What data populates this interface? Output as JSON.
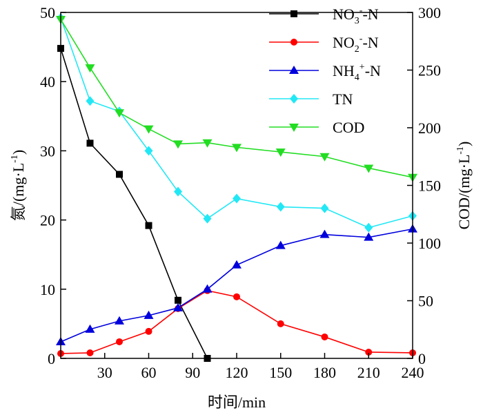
{
  "chart_data": {
    "type": "line",
    "x": [
      0,
      20,
      40,
      60,
      80,
      100,
      120,
      150,
      180,
      210,
      240
    ],
    "xlabel": "时间/min",
    "xlim": [
      0,
      240
    ],
    "xticks": [
      30,
      60,
      90,
      120,
      150,
      180,
      210,
      240
    ],
    "ylabel": "氮/(mg·L⁻¹)",
    "ylabel_parts": {
      "main": "氮/(mg·L",
      "sup": "-1",
      "close": ")"
    },
    "ylim": [
      0,
      50
    ],
    "yticks": [
      0,
      10,
      20,
      30,
      40,
      50
    ],
    "y2label": "COD/(mg·L⁻¹)",
    "y2label_parts": {
      "main": "COD/(mg·L",
      "sup": "-1",
      "close": ")"
    },
    "y2lim": [
      0,
      300
    ],
    "y2ticks": [
      0,
      50,
      100,
      150,
      200,
      250,
      300
    ],
    "series": [
      {
        "name": "NO3--N",
        "legend": {
          "base": "NO",
          "sub": "3",
          "sup": "-",
          "tail": "-N"
        },
        "color": "#000000",
        "marker": "square",
        "axis": "left",
        "x": [
          0,
          20,
          40,
          60,
          80,
          100
        ],
        "values": [
          44.8,
          31.1,
          26.6,
          19.2,
          8.4,
          0.0
        ]
      },
      {
        "name": "NO2--N",
        "legend": {
          "base": "NO",
          "sub": "2",
          "sup": "-",
          "tail": "-N"
        },
        "color": "#ff0000",
        "marker": "circle",
        "axis": "left",
        "x": [
          0,
          20,
          40,
          60,
          80,
          100,
          120,
          150,
          180,
          210,
          240
        ],
        "values": [
          0.7,
          0.8,
          2.4,
          3.9,
          7.2,
          9.8,
          8.9,
          5.0,
          3.1,
          0.9,
          0.8
        ]
      },
      {
        "name": "NH4+-N",
        "legend": {
          "base": "NH",
          "sub": "4",
          "sup": "+",
          "tail": "-N"
        },
        "color": "#0000dd",
        "marker": "triangle-up",
        "axis": "left",
        "x": [
          0,
          20,
          40,
          60,
          80,
          100,
          120,
          150,
          180,
          210,
          240
        ],
        "values": [
          2.4,
          4.2,
          5.4,
          6.2,
          7.3,
          10.0,
          13.5,
          16.3,
          17.9,
          17.5,
          18.7
        ]
      },
      {
        "name": "TN",
        "legend": {
          "base": "TN",
          "sub": "",
          "sup": "",
          "tail": ""
        },
        "color": "#22e8f5",
        "marker": "diamond",
        "axis": "left",
        "x": [
          0,
          20,
          40,
          60,
          80,
          100,
          120,
          150,
          180,
          210,
          240
        ],
        "values": [
          49.2,
          37.2,
          35.7,
          30.0,
          24.1,
          20.2,
          23.1,
          21.9,
          21.7,
          18.9,
          20.6
        ]
      },
      {
        "name": "COD",
        "legend": {
          "base": "COD",
          "sub": "",
          "sup": "",
          "tail": ""
        },
        "color": "#22dd22",
        "marker": "triangle-down",
        "axis": "right",
        "x": [
          0,
          20,
          40,
          60,
          80,
          100,
          120,
          150,
          180,
          210,
          240
        ],
        "values": [
          294,
          252,
          213,
          199,
          186,
          187,
          183,
          179,
          175,
          165,
          157
        ]
      }
    ]
  }
}
